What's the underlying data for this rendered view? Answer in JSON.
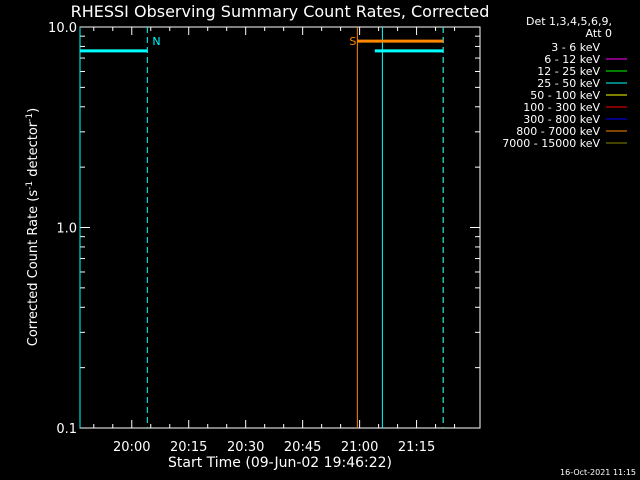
{
  "chart_data": {
    "type": "line",
    "title": "RHESSI Observing Summary Count Rates, Corrected",
    "xlabel": "Start Time (09-Jun-02 19:46:22)",
    "ylabel_main": "Corrected Count Rate (s",
    "ylabel_sup1": "-1",
    "ylabel_mid": " detector",
    "ylabel_sup2": "-1",
    "ylabel_end": ")",
    "yscale": "log",
    "ylim": [
      0.1,
      10.0
    ],
    "y_ticks": [
      {
        "value": 10.0,
        "label": "10.0"
      },
      {
        "value": 1.0,
        "label": "1.0"
      },
      {
        "value": 0.1,
        "label": "0.1"
      }
    ],
    "x_ticks": [
      "20:00",
      "20:15",
      "20:30",
      "20:45",
      "21:00",
      "21:15"
    ],
    "x_tick_minutes": [
      1200,
      1215,
      1230,
      1245,
      1260,
      1275
    ],
    "xlim_minutes": [
      1186.37,
      1291.7
    ],
    "legend": {
      "placement": "top-right",
      "header": [
        "Det 1,3,4,5,6,9,",
        "Att 0"
      ],
      "entries": [
        {
          "label": "3 - 6 keV",
          "color": "#000000"
        },
        {
          "label": "6 - 12 keV",
          "color": "#ff00ff"
        },
        {
          "label": "12 - 25 keV",
          "color": "#00ff00"
        },
        {
          "label": "25 - 50 keV",
          "color": "#00ffff"
        },
        {
          "label": "50 - 100 keV",
          "color": "#ffff00"
        },
        {
          "label": "100 - 300 keV",
          "color": "#ff0000"
        },
        {
          "label": "300 - 800 keV",
          "color": "#0000ff"
        },
        {
          "label": "800 - 7000 keV",
          "color": "#ff8800"
        },
        {
          "label": "7000 - 15000 keV",
          "color": "#888800"
        }
      ]
    },
    "series": [
      {
        "name": "25 - 50 keV",
        "color": "#00ffff",
        "segments": [
          {
            "x": [
              1186.37,
              1204.1
            ],
            "y": [
              7.6,
              7.6
            ]
          },
          {
            "x": [
              1264.0,
              1282.0
            ],
            "y": [
              7.6,
              7.6
            ]
          }
        ]
      },
      {
        "name": "800 - 7000 keV",
        "color": "#ff8800",
        "segments": [
          {
            "x": [
              1259.4,
              1282.0
            ],
            "y": [
              8.5,
              8.5
            ]
          }
        ]
      }
    ],
    "markers": [
      {
        "x": 1186.37,
        "color": "#00ffff",
        "style": "solid",
        "label": ""
      },
      {
        "x": 1204.1,
        "color": "#00ffff",
        "style": "dashed",
        "label": "N"
      },
      {
        "x": 1259.4,
        "color": "#ff8800",
        "style": "solid",
        "label": "S"
      },
      {
        "x": 1266.0,
        "color": "#00ffff",
        "style": "solid",
        "label": ""
      },
      {
        "x": 1282.0,
        "color": "#ff8800",
        "style": "dashed",
        "label": ""
      },
      {
        "x": 1282.0,
        "color": "#00ffff",
        "style": "dashed",
        "label": ""
      }
    ],
    "footer": "16-Oct-2021 11:15"
  }
}
